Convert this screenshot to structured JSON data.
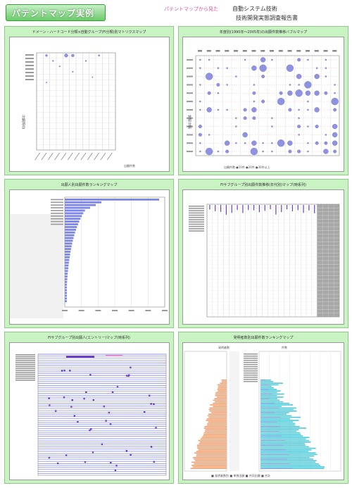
{
  "header": {
    "badge": "パテントマップ実例",
    "subtitle": "パテントマップから見た",
    "title_line1": "自動システム技術",
    "title_line2": "技術開発実態調査報告書"
  },
  "panels": [
    {
      "title": "ドメーン・ハードコード分類×自動グループ(FI分類)別マトリクスマップ",
      "side_label": "分類項目",
      "note": "出願件数"
    },
    {
      "title": "年度別(1990年〜2005年)の出願件数推移バブルマップ",
      "side_label": "技術分類",
      "note": "出願件数  ●10件  ●20件  ●30件以上"
    },
    {
      "title": "出願人別出願件数ランキングマップ"
    },
    {
      "title": "FIサブグループ別出願件数推移(年代別)マップ(時系列)"
    },
    {
      "title": "FIサブグループ別出願人(エントリー)マップ(時系列)"
    },
    {
      "title": "発明者数別出願件数ランキングマップ",
      "left_label": "発明者数",
      "right_label": "件数",
      "legend": "■ 発明者数別   ■ 単独出願   ■ 共同出願   ■ 合計"
    }
  ],
  "colors": {
    "panel": "#c9f3c3",
    "bubble": "#8e92e0",
    "bar": "#7d85e6",
    "mark": "#6a3fc4",
    "orange": "#f0a070",
    "cyan": "#4fc9d8"
  }
}
